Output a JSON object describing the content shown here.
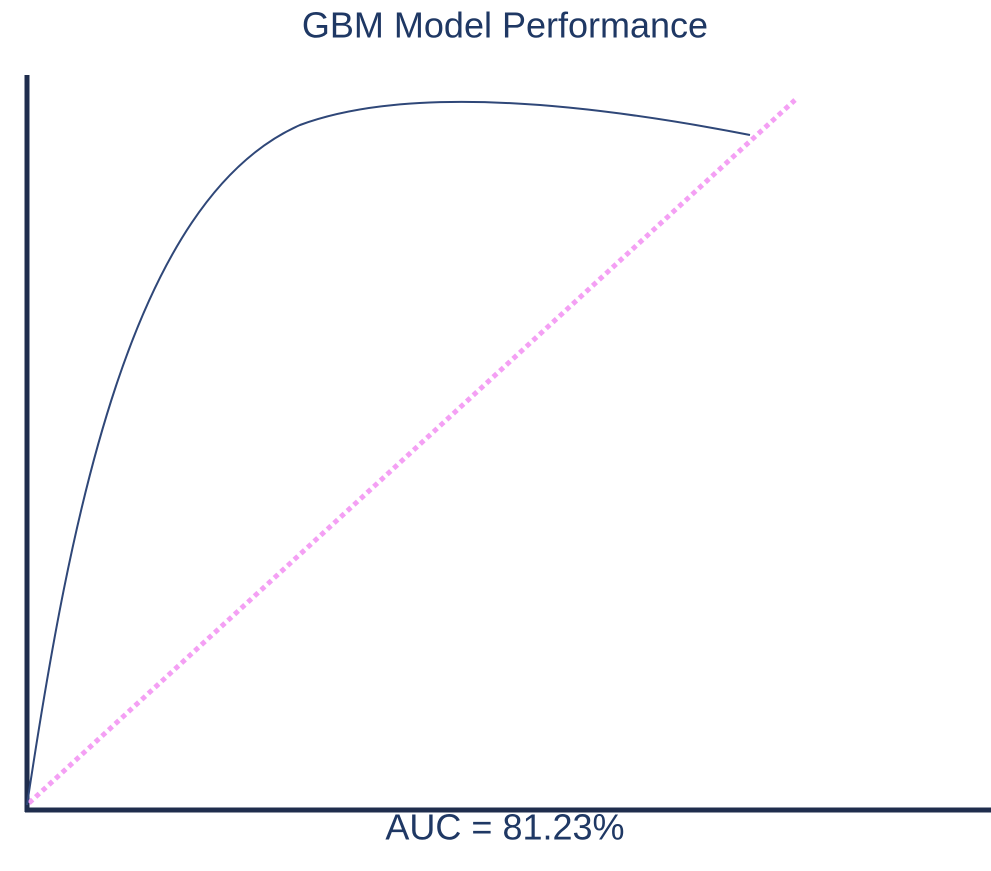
{
  "title": "GBM Model Performance",
  "annotation": "AUC = 81.23%"
}
